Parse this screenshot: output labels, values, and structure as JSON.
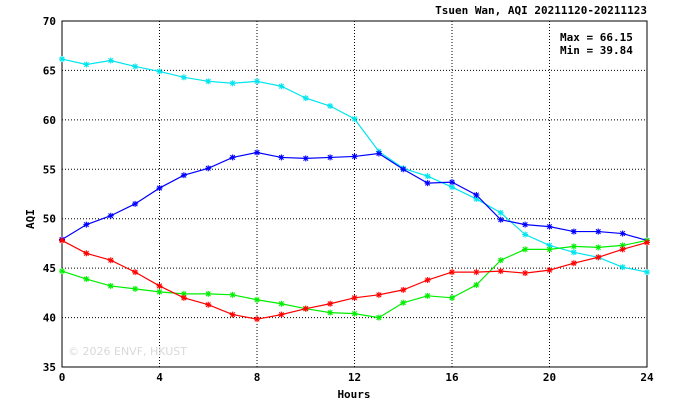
{
  "chart_data": {
    "type": "line",
    "title": "Tsuen Wan, AQI 20211120-20211123",
    "xlabel": "Hours",
    "ylabel": "AQI",
    "xlim": [
      0,
      24
    ],
    "ylim": [
      35,
      70
    ],
    "xticks": [
      0,
      4,
      8,
      12,
      16,
      20,
      24
    ],
    "yticks": [
      35,
      40,
      45,
      50,
      55,
      60,
      65,
      70
    ],
    "grid": true,
    "stats": {
      "max": "Max = 66.15",
      "min": "Min = 39.84"
    },
    "watermark": "© 2026  ENVF, HKUST",
    "x": [
      0,
      1,
      2,
      3,
      4,
      5,
      6,
      7,
      8,
      9,
      10,
      11,
      12,
      13,
      14,
      15,
      16,
      17,
      18,
      19,
      20,
      21,
      22,
      23,
      24
    ],
    "series": [
      {
        "color": "#00e5ee",
        "values": [
          66.15,
          65.6,
          66.0,
          65.4,
          64.9,
          64.3,
          63.9,
          63.7,
          63.9,
          63.4,
          62.2,
          61.4,
          60.1,
          56.8,
          55.1,
          54.3,
          53.2,
          52.0,
          50.6,
          48.4,
          47.3,
          46.6,
          46.1,
          45.1,
          44.6
        ]
      },
      {
        "color": "#0000ff",
        "values": [
          47.9,
          49.4,
          50.3,
          51.5,
          53.1,
          54.4,
          55.1,
          56.2,
          56.7,
          56.2,
          56.1,
          56.2,
          56.3,
          56.6,
          55.0,
          53.6,
          53.7,
          52.4,
          49.9,
          49.4,
          49.2,
          48.7,
          48.7,
          48.5,
          47.8
        ]
      },
      {
        "color": "#00ee00",
        "values": [
          44.7,
          43.9,
          43.2,
          42.9,
          42.6,
          42.4,
          42.4,
          42.3,
          41.8,
          41.4,
          40.9,
          40.5,
          40.4,
          40.0,
          41.5,
          42.2,
          42.0,
          43.3,
          45.8,
          46.9,
          46.9,
          47.2,
          47.1,
          47.3,
          47.8
        ]
      },
      {
        "color": "#ff0000",
        "values": [
          47.8,
          46.5,
          45.8,
          44.6,
          43.2,
          42.0,
          41.3,
          40.3,
          39.84,
          40.3,
          40.9,
          41.4,
          42.0,
          42.3,
          42.8,
          43.8,
          44.6,
          44.6,
          44.7,
          44.5,
          44.8,
          45.5,
          46.1,
          46.9,
          47.6
        ]
      }
    ]
  }
}
